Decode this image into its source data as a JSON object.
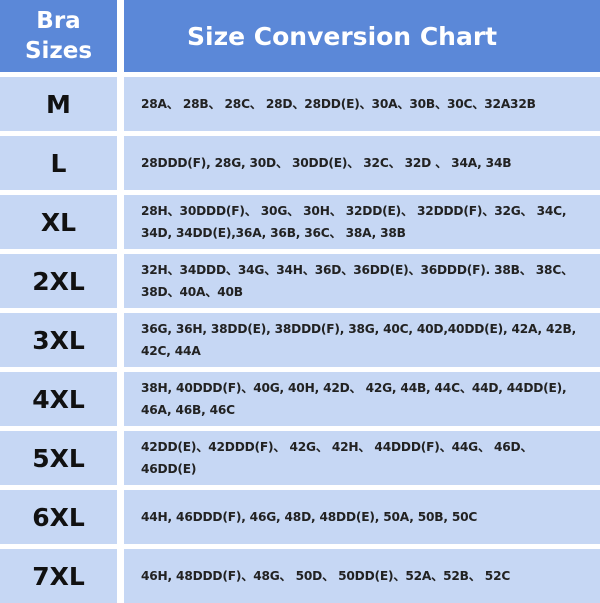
{
  "header": {
    "left_line1": "Bra",
    "left_line2": "Sizes",
    "right": "Size Conversion Chart"
  },
  "colors": {
    "header": "#5b88d8",
    "cell": "#c6d7f4"
  },
  "rows": [
    {
      "size": "M",
      "values": "28A、 28B、 28C、 28D、28DD(E)、30A、30B、30C、32A32B"
    },
    {
      "size": "L",
      "values": "28DDD(F), 28G, 30D、 30DD(E)、 32C、 32D 、 34A, 34B"
    },
    {
      "size": "XL",
      "values": "28H、30DDD(F)、 30G、 30H、 32DD(E)、 32DDD(F)、32G、 34C, 34D, 34DD(E),36A, 36B, 36C、 38A, 38B"
    },
    {
      "size": "2XL",
      "values": "32H、34DDD、34G、34H、36D、36DD(E)、36DDD(F). 38B、 38C、38D、40A、40B"
    },
    {
      "size": "3XL",
      "values": "36G, 36H, 38DD(E), 38DDD(F), 38G, 40C, 40D,40DD(E), 42A, 42B, 42C, 44A"
    },
    {
      "size": "4XL",
      "values": "38H, 40DDD(F)、40G, 40H, 42D、 42G, 44B, 44C、44D, 44DD(E), 46A, 46B, 46C"
    },
    {
      "size": "5XL",
      "values": "42DD(E)、42DDD(F)、 42G、 42H、 44DDD(F)、44G、 46D、 46DD(E)"
    },
    {
      "size": "6XL",
      "values": "44H, 46DDD(F), 46G, 48D, 48DD(E), 50A, 50B, 50C"
    },
    {
      "size": "7XL",
      "values": "46H, 48DDD(F)、48G、 50D、 50DD(E)、52A、52B、 52C"
    }
  ]
}
